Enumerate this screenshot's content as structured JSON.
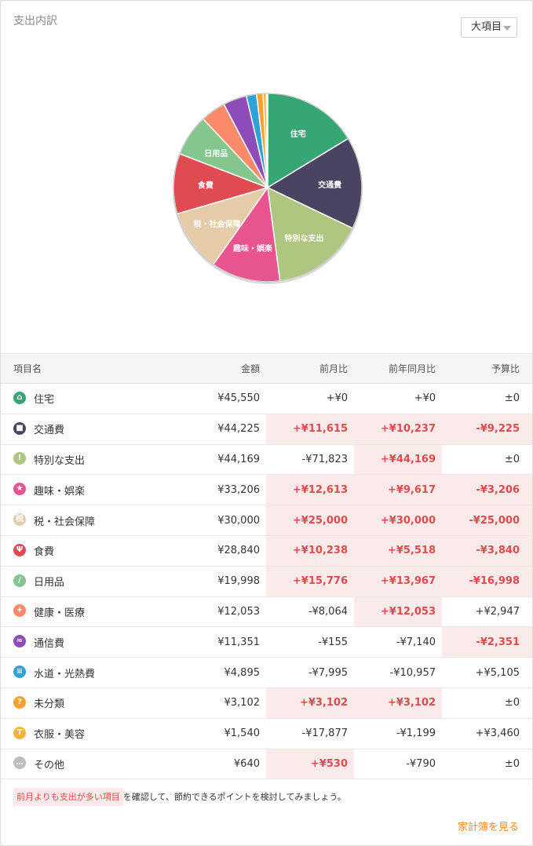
{
  "card": {
    "title": "支出内訳",
    "dropdown_label": "大項目"
  },
  "chart_data": {
    "type": "pie",
    "labels_on_slices": [
      "住宅",
      "交通費",
      "特別な支出",
      "趣味・娯楽",
      "税・社会保障",
      "食費",
      "日用品"
    ],
    "slices": [
      {
        "name": "住宅",
        "value": 45550,
        "color": "#37a675"
      },
      {
        "name": "交通費",
        "value": 44225,
        "color": "#4a4460"
      },
      {
        "name": "特別な支出",
        "value": 44169,
        "color": "#aec67f"
      },
      {
        "name": "趣味・娯楽",
        "value": 33206,
        "color": "#e8548d"
      },
      {
        "name": "税・社会保障",
        "value": 30000,
        "color": "#e6cba9"
      },
      {
        "name": "食費",
        "value": 28840,
        "color": "#e04b52"
      },
      {
        "name": "日用品",
        "value": 19998,
        "color": "#85c58e"
      },
      {
        "name": "健康・医療",
        "value": 12053,
        "color": "#fb8a6a"
      },
      {
        "name": "通信費",
        "value": 11351,
        "color": "#8e4cb8"
      },
      {
        "name": "水道・光熱費",
        "value": 4895,
        "color": "#2ea2d9"
      },
      {
        "name": "未分類",
        "value": 3102,
        "color": "#f7a130"
      },
      {
        "name": "衣服・美容",
        "value": 1540,
        "color": "#f3b33a"
      },
      {
        "name": "その他",
        "value": 640,
        "color": "#bdbdbd"
      }
    ]
  },
  "table": {
    "headers": {
      "name": "項目名",
      "amount": "金額",
      "mom": "前月比",
      "yoy": "前年同月比",
      "budget": "予算比"
    },
    "rows": [
      {
        "icon": "home-icon",
        "color": "#37a675",
        "glyph": "⌂",
        "name": "住宅",
        "amount": "¥45,550",
        "mom": "+¥0",
        "mom_up": false,
        "yoy": "+¥0",
        "yoy_up": false,
        "budget": "±0",
        "budget_over": false
      },
      {
        "icon": "train-icon",
        "color": "#4a4460",
        "glyph": "■",
        "name": "交通費",
        "amount": "¥44,225",
        "mom": "+¥11,615",
        "mom_up": true,
        "yoy": "+¥10,237",
        "yoy_up": true,
        "budget": "-¥9,225",
        "budget_over": true
      },
      {
        "icon": "exclamation-icon",
        "color": "#aec67f",
        "glyph": "!",
        "name": "特別な支出",
        "amount": "¥44,169",
        "mom": "-¥71,823",
        "mom_up": false,
        "yoy": "+¥44,169",
        "yoy_up": true,
        "budget": "±0",
        "budget_over": false
      },
      {
        "icon": "star-icon",
        "color": "#e8548d",
        "glyph": "★",
        "name": "趣味・娯楽",
        "amount": "¥33,206",
        "mom": "+¥12,613",
        "mom_up": true,
        "yoy": "+¥9,617",
        "yoy_up": true,
        "budget": "-¥3,206",
        "budget_over": true
      },
      {
        "icon": "tax-icon",
        "color": "#e6cba9",
        "glyph": "税",
        "name": "税・社会保障",
        "amount": "¥30,000",
        "mom": "+¥25,000",
        "mom_up": true,
        "yoy": "+¥30,000",
        "yoy_up": true,
        "budget": "-¥25,000",
        "budget_over": true
      },
      {
        "icon": "fork-knife-icon",
        "color": "#e04b52",
        "glyph": "Ψ",
        "name": "食費",
        "amount": "¥28,840",
        "mom": "+¥10,238",
        "mom_up": true,
        "yoy": "+¥5,518",
        "yoy_up": true,
        "budget": "-¥3,840",
        "budget_over": true
      },
      {
        "icon": "brush-icon",
        "color": "#85c58e",
        "glyph": "/",
        "name": "日用品",
        "amount": "¥19,998",
        "mom": "+¥15,776",
        "mom_up": true,
        "yoy": "+¥13,967",
        "yoy_up": true,
        "budget": "-¥16,998",
        "budget_over": true
      },
      {
        "icon": "medical-cross-icon",
        "color": "#fb8a6a",
        "glyph": "+",
        "name": "健康・医療",
        "amount": "¥12,053",
        "mom": "-¥8,064",
        "mom_up": false,
        "yoy": "+¥12,053",
        "yoy_up": true,
        "budget": "+¥2,947",
        "budget_over": false
      },
      {
        "icon": "antenna-icon",
        "color": "#8e4cb8",
        "glyph": "≈",
        "name": "通信費",
        "amount": "¥11,351",
        "mom": "-¥155",
        "mom_up": false,
        "yoy": "-¥7,140",
        "yoy_up": false,
        "budget": "-¥2,351",
        "budget_over": true
      },
      {
        "icon": "faucet-icon",
        "color": "#2ea2d9",
        "glyph": "≡",
        "name": "水道・光熱費",
        "amount": "¥4,895",
        "mom": "-¥7,995",
        "mom_up": false,
        "yoy": "-¥10,957",
        "yoy_up": false,
        "budget": "+¥5,105",
        "budget_over": false
      },
      {
        "icon": "question-icon",
        "color": "#f7a130",
        "glyph": "?",
        "name": "未分類",
        "amount": "¥3,102",
        "mom": "+¥3,102",
        "mom_up": true,
        "yoy": "+¥3,102",
        "yoy_up": true,
        "budget": "±0",
        "budget_over": false
      },
      {
        "icon": "shirt-icon",
        "color": "#f3b33a",
        "glyph": "T",
        "name": "衣服・美容",
        "amount": "¥1,540",
        "mom": "-¥17,877",
        "mom_up": false,
        "yoy": "-¥1,199",
        "yoy_up": false,
        "budget": "+¥3,460",
        "budget_over": false
      },
      {
        "icon": "ellipsis-icon",
        "color": "#bdbdbd",
        "glyph": "…",
        "name": "その他",
        "amount": "¥640",
        "mom": "+¥530",
        "mom_up": true,
        "yoy": "-¥790",
        "yoy_up": false,
        "budget": "±0",
        "budget_over": false
      }
    ]
  },
  "footer": {
    "highlight": "前月よりも支出が多い項目",
    "note": "を確認して、節約できるポイントを検討してみましょう。",
    "link": "家計簿を見る"
  }
}
